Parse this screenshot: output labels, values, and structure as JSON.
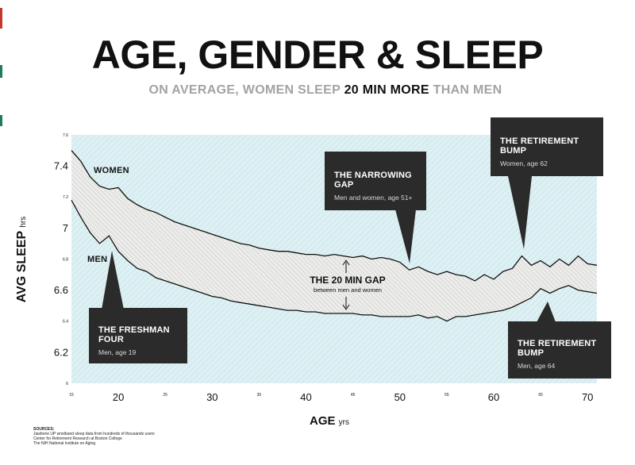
{
  "header": {
    "title": "AGE, GENDER & SLEEP",
    "subtitle_pre": "ON AVERAGE, WOMEN SLEEP ",
    "subtitle_highlight": "20 MIN MORE",
    "subtitle_post": " THAN MEN"
  },
  "labels": {
    "ylabel": "AVG SLEEP",
    "ylabel_unit": "hrs",
    "xlabel": "AGE",
    "xlabel_unit": "yrs",
    "women": "WOMEN",
    "men": "MEN"
  },
  "callouts": {
    "freshman": {
      "title": "THE FRESHMAN FOUR",
      "sub": "Men, age 19"
    },
    "narrowing": {
      "title": "THE NARROWING GAP",
      "sub": "Men and women, age 51+"
    },
    "retire_women": {
      "title": "THE RETIREMENT BUMP",
      "sub": "Women, age 62"
    },
    "retire_men": {
      "title": "THE RETIREMENT BUMP",
      "sub": "Men, age 64"
    }
  },
  "gap": {
    "title": "THE 20 MIN GAP",
    "sub": "between men and women"
  },
  "sources": {
    "heading": "SOURCES:",
    "lines": [
      "Jawbone UP wristband sleep data from hundreds of thousands users",
      "Center for Retirement Research at Boston College",
      "The NIH National Institute on Aging"
    ]
  },
  "colors": {
    "plot_bg": "#ddf0f3",
    "gap_fill": "#ececea",
    "line": "#111111",
    "callout_bg": "#2b2b2b",
    "subtitle_grey": "#a3a3a3"
  },
  "chart_data": {
    "type": "area",
    "x": [
      15,
      16,
      17,
      18,
      19,
      20,
      21,
      22,
      23,
      24,
      25,
      26,
      27,
      28,
      29,
      30,
      31,
      32,
      33,
      34,
      35,
      36,
      37,
      38,
      39,
      40,
      41,
      42,
      43,
      44,
      45,
      46,
      47,
      48,
      49,
      50,
      51,
      52,
      53,
      54,
      55,
      56,
      57,
      58,
      59,
      60,
      61,
      62,
      63,
      64,
      65,
      66,
      67,
      68,
      69,
      70,
      71
    ],
    "series": [
      {
        "name": "WOMEN",
        "values": [
          7.5,
          7.43,
          7.33,
          7.27,
          7.25,
          7.26,
          7.19,
          7.15,
          7.12,
          7.1,
          7.07,
          7.04,
          7.02,
          7.0,
          6.98,
          6.96,
          6.94,
          6.92,
          6.9,
          6.89,
          6.87,
          6.86,
          6.85,
          6.85,
          6.84,
          6.83,
          6.83,
          6.82,
          6.83,
          6.82,
          6.81,
          6.82,
          6.8,
          6.81,
          6.8,
          6.78,
          6.73,
          6.75,
          6.72,
          6.7,
          6.72,
          6.7,
          6.69,
          6.66,
          6.7,
          6.67,
          6.72,
          6.74,
          6.82,
          6.76,
          6.79,
          6.75,
          6.8,
          6.76,
          6.82,
          6.77,
          6.76
        ]
      },
      {
        "name": "MEN",
        "values": [
          7.18,
          7.07,
          6.97,
          6.9,
          6.95,
          6.85,
          6.79,
          6.74,
          6.72,
          6.68,
          6.66,
          6.64,
          6.62,
          6.6,
          6.58,
          6.56,
          6.55,
          6.53,
          6.52,
          6.51,
          6.5,
          6.49,
          6.48,
          6.47,
          6.47,
          6.46,
          6.46,
          6.45,
          6.45,
          6.45,
          6.45,
          6.44,
          6.44,
          6.43,
          6.43,
          6.43,
          6.43,
          6.44,
          6.42,
          6.43,
          6.4,
          6.43,
          6.43,
          6.44,
          6.45,
          6.46,
          6.47,
          6.49,
          6.52,
          6.55,
          6.61,
          6.58,
          6.61,
          6.63,
          6.6,
          6.59,
          6.58
        ]
      }
    ],
    "xlabel": "AGE yrs",
    "ylabel": "AVG SLEEP hrs",
    "xlim": [
      15,
      71
    ],
    "ylim": [
      6,
      7.6
    ],
    "x_major_ticks": [
      "20",
      "30",
      "40",
      "50",
      "60",
      "70"
    ],
    "x_minor_ticks": [
      "15",
      "25",
      "35",
      "45",
      "55",
      "65"
    ],
    "y_major_ticks": [
      "6.2",
      "6.6",
      "7",
      "7.4"
    ],
    "y_minor_ticks": [
      "6",
      "6.4",
      "6.8",
      "7.2",
      "7.6"
    ],
    "grid": false,
    "legend": "inline labels"
  }
}
